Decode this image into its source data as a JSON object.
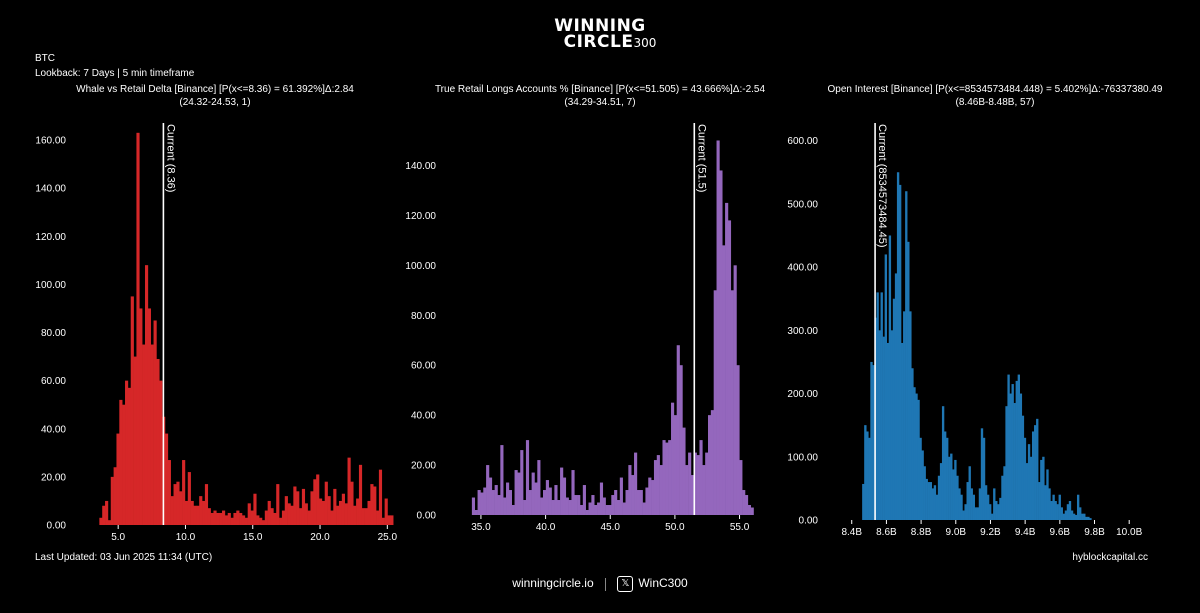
{
  "header": {
    "logo_line1": "WINNING",
    "logo_line2": "CIRCLE",
    "logo_sup": "300",
    "asset": "BTC",
    "lookback": "Lookback: 7 Days | 5 min timeframe"
  },
  "footer": {
    "last_updated": "Last Updated: 03 Jun 2025 11:34 (UTC)",
    "website": "winningcircle.io",
    "handle": "WinC300",
    "handle_icon": "x-logo-icon",
    "source": "hyblockcapital.cc"
  },
  "chart_data": [
    {
      "type": "bar",
      "title": "Whale vs Retail Delta [Binance] [P(x<=8.36) = 61.392%]Δ:2.84",
      "subtitle": "(24.32-24.53, 1)",
      "color": "#d62728",
      "current_label": "Current (8.36)",
      "current_value": 8.36,
      "xlim": [
        3.5,
        25.2
      ],
      "ylim": [
        0,
        165
      ],
      "xticks": [
        5,
        10,
        15,
        20,
        25
      ],
      "xtick_labels": [
        "5.0",
        "10.0",
        "15.0",
        "20.0",
        "25.0"
      ],
      "yticks": [
        0,
        20,
        40,
        60,
        80,
        100,
        120,
        140,
        160
      ],
      "ytick_labels": [
        "0.00",
        "20.00",
        "40.00",
        "60.00",
        "80.00",
        "100.00",
        "120.00",
        "140.00",
        "160.00"
      ],
      "bin_start": 3.6,
      "bin_width": 0.212,
      "values": [
        3,
        8,
        10,
        2,
        20,
        24,
        38,
        52,
        50,
        60,
        57,
        95,
        70,
        163,
        90,
        75,
        108,
        90,
        75,
        85,
        69,
        60,
        45,
        38,
        27,
        12,
        17,
        18,
        14,
        27,
        10,
        22,
        10,
        8,
        8,
        12,
        10,
        17,
        7,
        5,
        6,
        5,
        5,
        6,
        4,
        5,
        3,
        5,
        6,
        5,
        4,
        3,
        9,
        6,
        13,
        4,
        3,
        2,
        6,
        10,
        7,
        5,
        17,
        3,
        6,
        12,
        9,
        8,
        16,
        14,
        7,
        15,
        9,
        6,
        14,
        19,
        21,
        11,
        10,
        18,
        12,
        6,
        15,
        8,
        10,
        13,
        9,
        28,
        18,
        8,
        11,
        25,
        7,
        7,
        10,
        17,
        16,
        6,
        23,
        3,
        11,
        4,
        4
      ]
    },
    {
      "type": "bar",
      "title": "True Retail Longs Accounts % [Binance] [P(x<=51.505) = 43.666%]Δ:-2.54",
      "subtitle": "(34.29-34.51, 7)",
      "color": "#9467bd",
      "current_label": "Current (51.5)",
      "current_value": 51.5,
      "xlim": [
        34.0,
        57.2
      ],
      "ylim": [
        0,
        155
      ],
      "xticks": [
        35,
        40,
        45,
        50,
        55
      ],
      "xtick_labels": [
        "35.0",
        "40.0",
        "45.0",
        "50.0",
        "55.0"
      ],
      "yticks": [
        0,
        20,
        40,
        60,
        80,
        100,
        120,
        140
      ],
      "ytick_labels": [
        "0.00",
        "20.00",
        "40.00",
        "60.00",
        "80.00",
        "100.00",
        "120.00",
        "140.00"
      ],
      "bin_start": 34.3,
      "bin_width": 0.22,
      "values": [
        7,
        2,
        10,
        9,
        11,
        20,
        15,
        10,
        12,
        8,
        28,
        7,
        13,
        10,
        4,
        18,
        17,
        26,
        6,
        30,
        10,
        17,
        13,
        22,
        7,
        10,
        14,
        11,
        6,
        12,
        6,
        19,
        15,
        7,
        6,
        18,
        8,
        8,
        4,
        12,
        2,
        5,
        8,
        4,
        5,
        13,
        7,
        4,
        4,
        8,
        10,
        6,
        15,
        5,
        10,
        20,
        16,
        25,
        10,
        10,
        5,
        11,
        15,
        14,
        22,
        24,
        20,
        30,
        29,
        30,
        45,
        40,
        68,
        60,
        35,
        20,
        25,
        16,
        25,
        24,
        30,
        20,
        25,
        40,
        42,
        90,
        150,
        138,
        108,
        125,
        118,
        90,
        100,
        60,
        22,
        10,
        8,
        4,
        3
      ]
    },
    {
      "type": "bar",
      "title": "Open Interest [Binance] [P(x<=8534573484.448) = 5.402%]Δ:-76337380.49",
      "subtitle": "(8.46B-8.48B, 57)",
      "color": "#1f77b4",
      "current_label": "Current (8534573484.45)",
      "current_value": 8.5346,
      "xlim": [
        8.39,
        10.12
      ],
      "ylim": [
        0,
        620
      ],
      "xticks": [
        8.4,
        8.6,
        8.8,
        9.0,
        9.2,
        9.4,
        9.6,
        9.8,
        10.0
      ],
      "xtick_labels": [
        "8.4B",
        "8.6B",
        "8.8B",
        "9.0B",
        "9.2B",
        "9.4B",
        "9.6B",
        "9.8B",
        "10.0B"
      ],
      "yticks": [
        0,
        100,
        200,
        300,
        400,
        500,
        600
      ],
      "ytick_labels": [
        "0.00",
        "100.00",
        "200.00",
        "300.00",
        "400.00",
        "500.00",
        "600.00"
      ],
      "bin_start": 8.46,
      "bin_width": 0.0118,
      "values": [
        57,
        150,
        140,
        130,
        250,
        245,
        320,
        360,
        300,
        360,
        290,
        420,
        280,
        450,
        300,
        350,
        390,
        550,
        530,
        280,
        330,
        520,
        440,
        330,
        240,
        210,
        200,
        190,
        130,
        110,
        85,
        65,
        60,
        60,
        50,
        55,
        40,
        70,
        90,
        180,
        140,
        130,
        100,
        105,
        80,
        95,
        70,
        50,
        40,
        15,
        25,
        60,
        85,
        50,
        40,
        20,
        20,
        50,
        145,
        130,
        55,
        40,
        25,
        10,
        50,
        30,
        25,
        35,
        70,
        85,
        180,
        230,
        200,
        215,
        185,
        220,
        230,
        200,
        165,
        130,
        90,
        120,
        100,
        140,
        150,
        160,
        60,
        95,
        100,
        55,
        80,
        50,
        30,
        40,
        30,
        25,
        40,
        20,
        10,
        15,
        25,
        30,
        15,
        10,
        8,
        40,
        20,
        10,
        10,
        5,
        5,
        3
      ]
    }
  ]
}
